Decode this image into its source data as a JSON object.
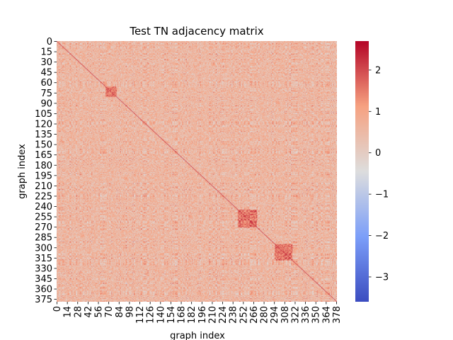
{
  "chart_data": {
    "type": "heatmap",
    "title": "Test TN adjacency matrix",
    "xlabel": "graph index",
    "ylabel": "graph index",
    "n": 379,
    "x_tick_labels": [
      "0",
      "14",
      "28",
      "42",
      "56",
      "70",
      "84",
      "98",
      "112",
      "126",
      "140",
      "154",
      "168",
      "182",
      "196",
      "210",
      "224",
      "238",
      "252",
      "266",
      "280",
      "294",
      "308",
      "322",
      "336",
      "350",
      "364",
      "378"
    ],
    "y_tick_labels": [
      "0",
      "15",
      "30",
      "45",
      "60",
      "75",
      "90",
      "105",
      "120",
      "135",
      "150",
      "165",
      "180",
      "195",
      "210",
      "225",
      "240",
      "255",
      "270",
      "285",
      "300",
      "315",
      "330",
      "345",
      "360",
      "375"
    ],
    "colormap": "coolwarm",
    "vmin": -3.6,
    "vmax": 2.7,
    "colorbar_ticks": [
      "2",
      "1",
      "0",
      "−1",
      "−2",
      "−3"
    ],
    "colorbar_tick_values": [
      2,
      1,
      0,
      -1,
      -2,
      -3
    ],
    "grid": false,
    "colors": {
      "cold": "#3b4cc0",
      "neutral": "#dddddd",
      "warm": "#b40426"
    }
  }
}
